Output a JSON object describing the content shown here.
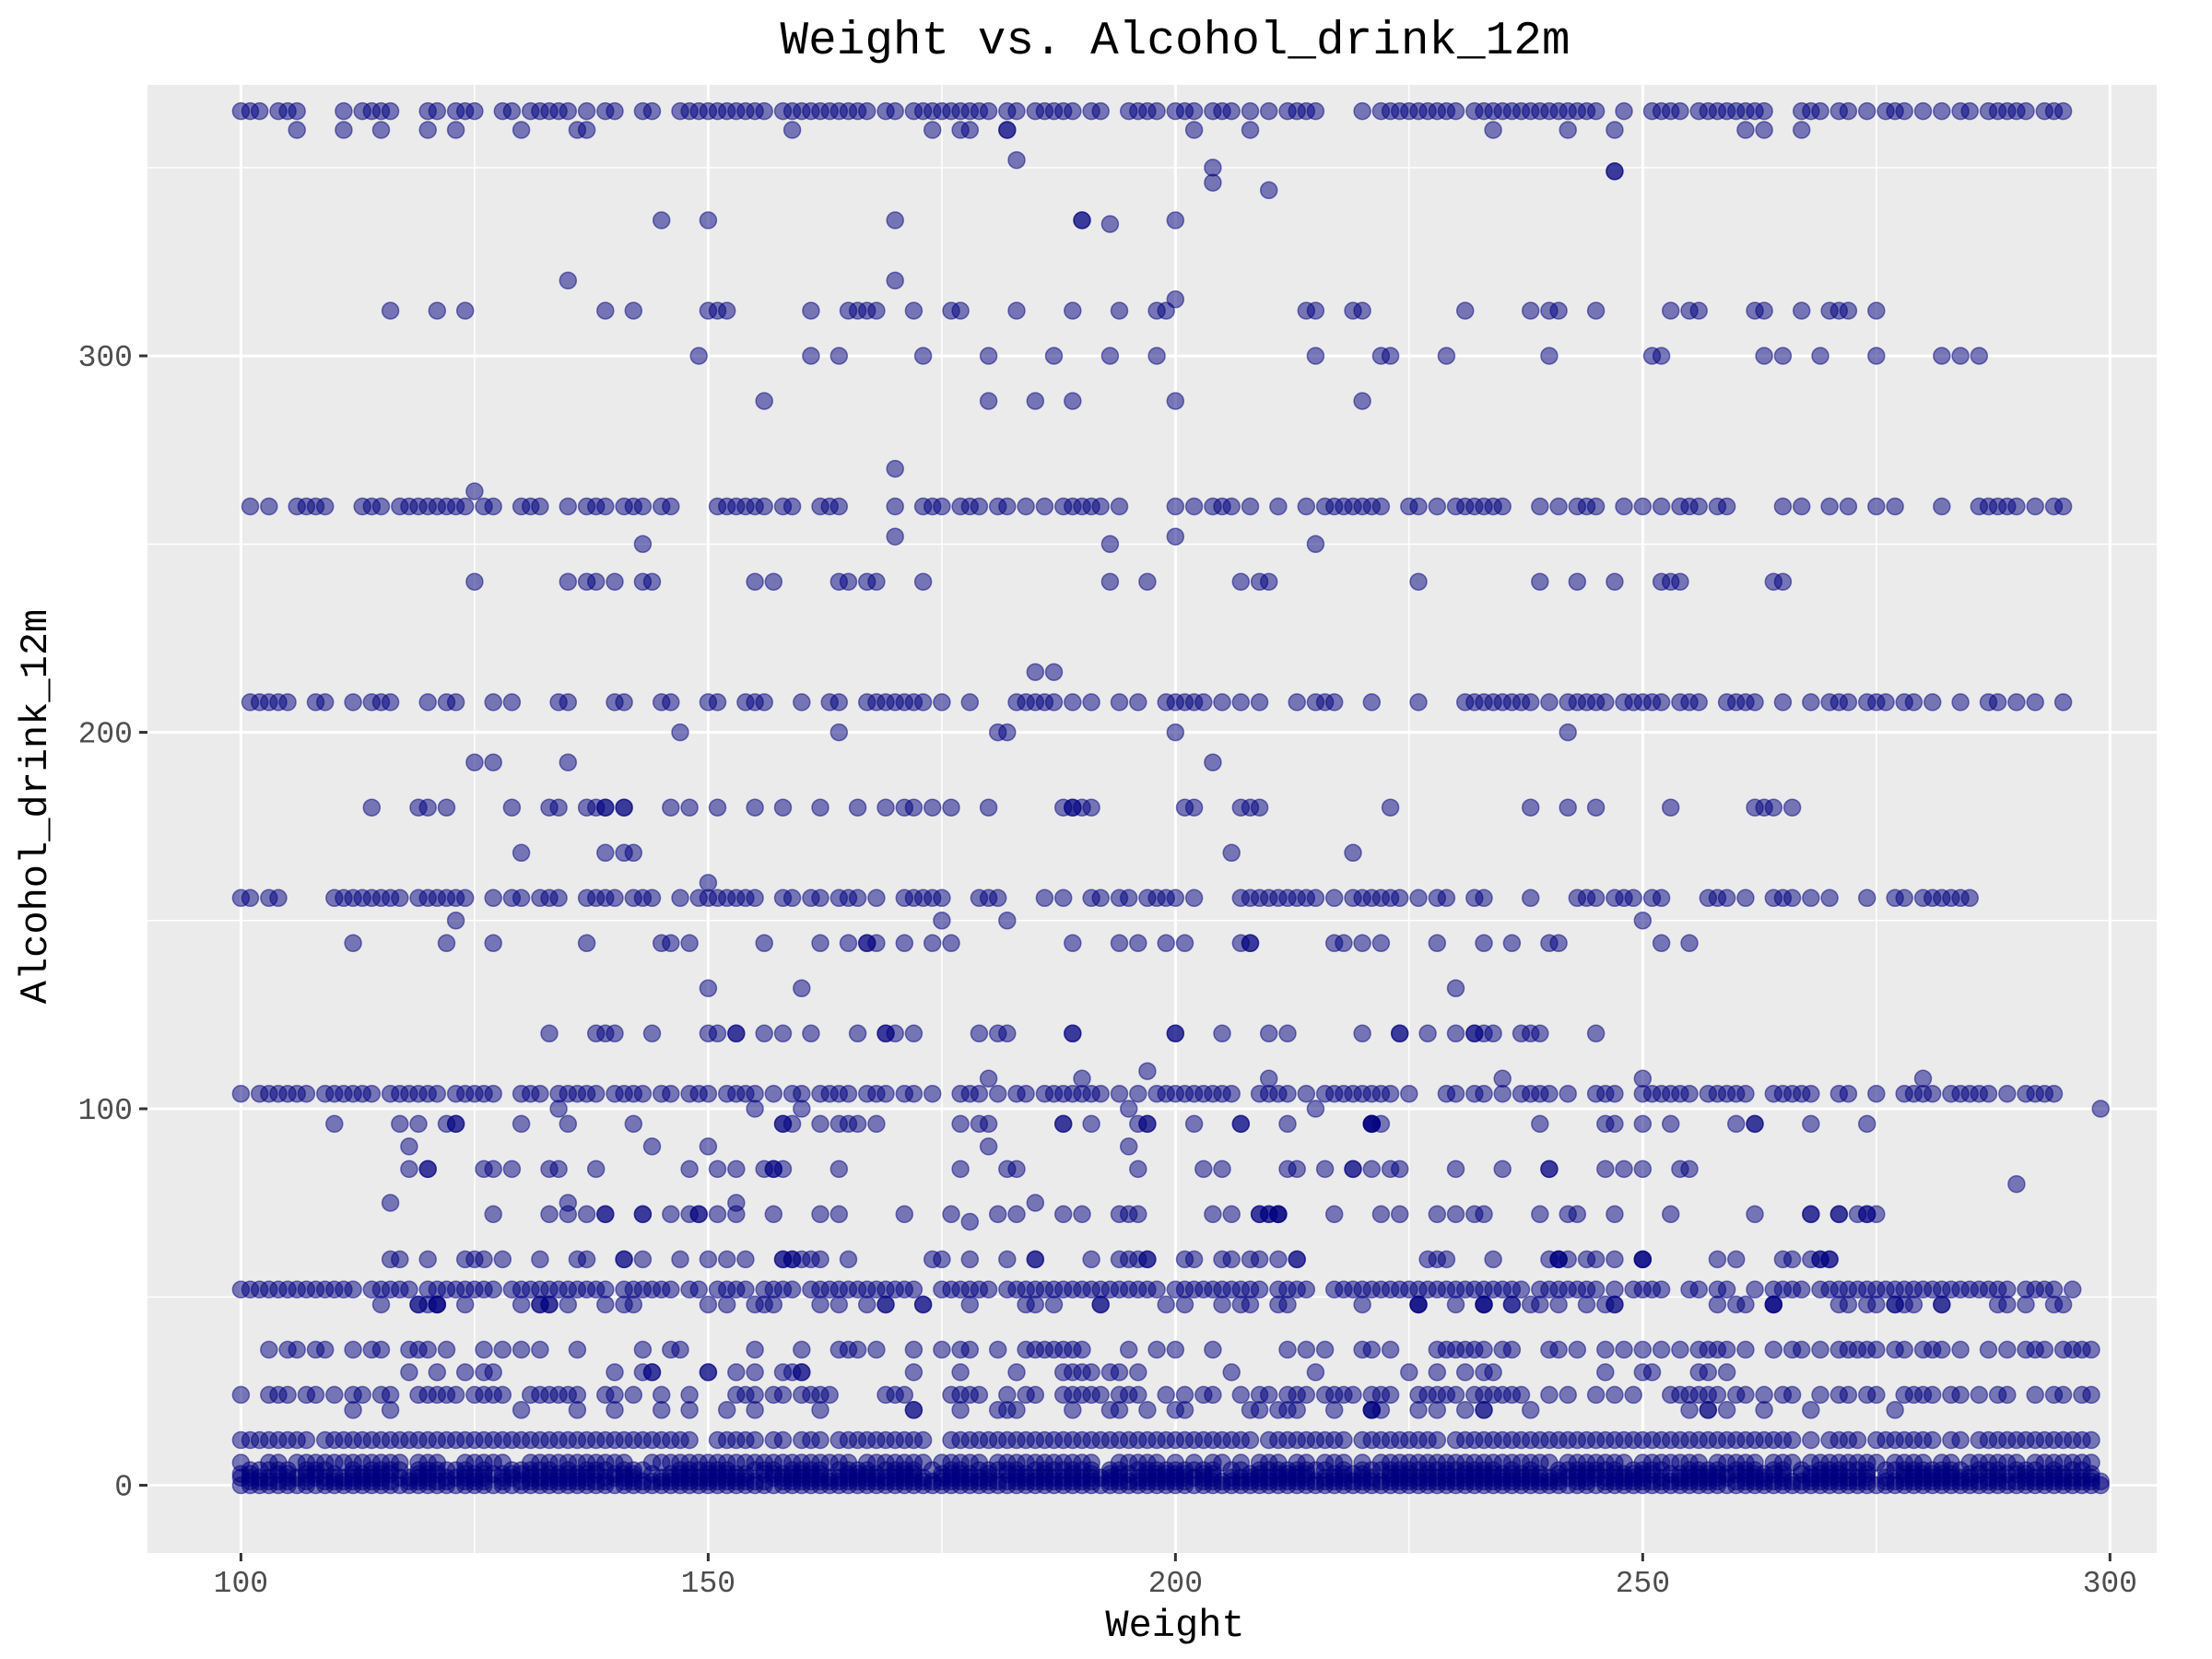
{
  "chart_data": {
    "type": "scatter",
    "title": "Weight vs. Alcohol_drink_12m",
    "xlabel": "Weight",
    "ylabel": "Alcohol_drink_12m",
    "xlim": [
      90,
      305
    ],
    "ylim": [
      -18,
      372
    ],
    "x_ticks": [
      100,
      150,
      200,
      250,
      300
    ],
    "y_ticks": [
      0,
      100,
      200,
      300
    ],
    "x_tick_labels": [
      "100",
      "150",
      "200",
      "250",
      "300"
    ],
    "y_tick_labels": [
      "0",
      "100",
      "200",
      "300"
    ],
    "grid": true,
    "legend": "none",
    "point_color": "#00007f",
    "point_alpha": 0.5,
    "panel_background": "#ebebeb",
    "bands": [
      {
        "y": 365,
        "x_range": [
          100,
          295
        ],
        "density": 0.7
      },
      {
        "y": 312,
        "x_range": [
          100,
          275
        ],
        "density": 0.25
      },
      {
        "y": 260,
        "x_range": [
          101,
          296
        ],
        "density": 0.55
      },
      {
        "y": 208,
        "x_range": [
          100,
          295
        ],
        "density": 0.55
      },
      {
        "y": 156,
        "x_range": [
          100,
          285
        ],
        "density": 0.6
      },
      {
        "y": 104,
        "x_range": [
          100,
          296
        ],
        "density": 0.7
      },
      {
        "y": 52,
        "x_range": [
          100,
          296
        ],
        "density": 0.85
      },
      {
        "y": 36,
        "x_range": [
          103,
          298
        ],
        "density": 0.45
      },
      {
        "y": 24,
        "x_range": [
          100,
          298
        ],
        "density": 0.65
      },
      {
        "y": 12,
        "x_range": [
          100,
          298
        ],
        "density": 0.9
      },
      {
        "y": 6,
        "x_range": [
          100,
          298
        ],
        "density": 0.8
      },
      {
        "y": 4,
        "x_range": [
          100,
          298
        ],
        "density": 0.8
      },
      {
        "y": 3,
        "x_range": [
          100,
          298
        ],
        "density": 0.8
      },
      {
        "y": 2,
        "x_range": [
          100,
          298
        ],
        "density": 0.9
      },
      {
        "y": 1,
        "x_range": [
          100,
          299
        ],
        "density": 0.95
      },
      {
        "y": 0,
        "x_range": [
          100,
          299
        ],
        "density": 1.0
      }
    ],
    "sparse_levels": [
      {
        "y": 240,
        "x_range": [
          115,
          270
        ],
        "count": 28
      },
      {
        "y": 180,
        "x_range": [
          113,
          272
        ],
        "count": 45
      },
      {
        "y": 144,
        "x_range": [
          107,
          260
        ],
        "count": 35
      },
      {
        "y": 120,
        "x_range": [
          130,
          245
        ],
        "count": 40
      },
      {
        "y": 96,
        "x_range": [
          110,
          275
        ],
        "count": 45
      },
      {
        "y": 84,
        "x_range": [
          113,
          260
        ],
        "count": 40
      },
      {
        "y": 72,
        "x_range": [
          118,
          278
        ],
        "count": 55
      },
      {
        "y": 60,
        "x_range": [
          116,
          270
        ],
        "count": 70
      },
      {
        "y": 48,
        "x_range": [
          110,
          296
        ],
        "count": 80
      },
      {
        "y": 30,
        "x_range": [
          114,
          260
        ],
        "count": 40
      },
      {
        "y": 20,
        "x_range": [
          108,
          280
        ],
        "count": 45
      },
      {
        "y": 300,
        "x_range": [
          140,
          290
        ],
        "count": 22
      },
      {
        "y": 360,
        "x_range": [
          104,
          275
        ],
        "count": 22
      },
      {
        "y": 200,
        "x_range": [
          143,
          250
        ],
        "count": 6
      },
      {
        "y": 168,
        "x_range": [
          120,
          225
        ],
        "count": 6
      }
    ],
    "points": [
      [
        183,
        352
      ],
      [
        204,
        346
      ],
      [
        210,
        344
      ],
      [
        247,
        349
      ],
      [
        204,
        350
      ],
      [
        145,
        336
      ],
      [
        150,
        336
      ],
      [
        170,
        336
      ],
      [
        190,
        336
      ],
      [
        193,
        335
      ],
      [
        200,
        336
      ],
      [
        135,
        320
      ],
      [
        170,
        320
      ],
      [
        200,
        315
      ],
      [
        156,
        288
      ],
      [
        180,
        288
      ],
      [
        185,
        288
      ],
      [
        189,
        288
      ],
      [
        200,
        288
      ],
      [
        220,
        288
      ],
      [
        170,
        270
      ],
      [
        125,
        264
      ],
      [
        143,
        250
      ],
      [
        170,
        252
      ],
      [
        193,
        250
      ],
      [
        200,
        252
      ],
      [
        215,
        250
      ],
      [
        185,
        216
      ],
      [
        187,
        216
      ],
      [
        125,
        192
      ],
      [
        127,
        192
      ],
      [
        135,
        192
      ],
      [
        204,
        192
      ],
      [
        150,
        160
      ],
      [
        150,
        132
      ],
      [
        160,
        132
      ],
      [
        230,
        132
      ],
      [
        123,
        150
      ],
      [
        175,
        150
      ],
      [
        182,
        150
      ],
      [
        250,
        150
      ],
      [
        180,
        108
      ],
      [
        190,
        108
      ],
      [
        197,
        110
      ],
      [
        210,
        108
      ],
      [
        235,
        108
      ],
      [
        250,
        108
      ],
      [
        280,
        108
      ],
      [
        299,
        100
      ],
      [
        134,
        100
      ],
      [
        155,
        100
      ],
      [
        160,
        100
      ],
      [
        195,
        100
      ],
      [
        215,
        100
      ],
      [
        118,
        90
      ],
      [
        144,
        90
      ],
      [
        150,
        90
      ],
      [
        195,
        90
      ],
      [
        180,
        90
      ],
      [
        116,
        75
      ],
      [
        135,
        75
      ],
      [
        153,
        75
      ],
      [
        185,
        75
      ],
      [
        290,
        80
      ],
      [
        178,
        70
      ],
      [
        196,
        72
      ],
      [
        190,
        336
      ],
      [
        247,
        349
      ]
    ]
  }
}
